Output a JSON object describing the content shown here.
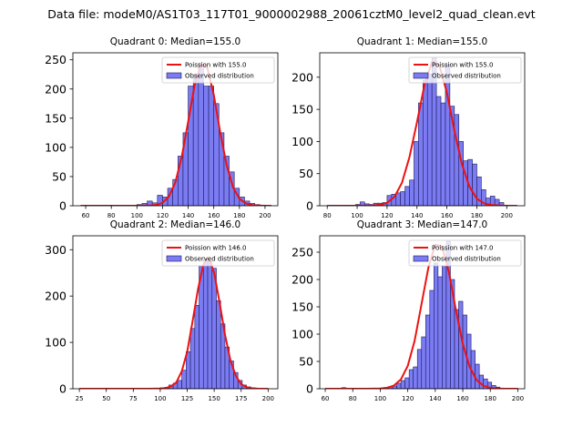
{
  "suptitle": "Data file: modeM0/AS1T03_117T01_9000002988_20061cztM0_level2_quad_clean.evt",
  "colors": {
    "bar_fill": "#7b7bf2",
    "bar_edge": "#1c1c5e",
    "line": "#ee1111"
  },
  "chart_data": [
    {
      "type": "bar",
      "title": "Quadrant 0: Median=155.0",
      "median": 155.0,
      "xlim": [
        50,
        210
      ],
      "ylim": [
        0,
        262
      ],
      "xticks": [
        60,
        80,
        100,
        120,
        140,
        160,
        180,
        200
      ],
      "yticks": [
        0,
        50,
        100,
        150,
        200,
        250
      ],
      "bin_width": 4,
      "bins": [
        100,
        104,
        108,
        112,
        116,
        120,
        124,
        128,
        132,
        136,
        140,
        144,
        148,
        152,
        156,
        160,
        164,
        168,
        172,
        176,
        180,
        184,
        188,
        192,
        196,
        200
      ],
      "values": [
        2,
        4,
        8,
        5,
        18,
        15,
        30,
        45,
        85,
        125,
        205,
        225,
        242,
        205,
        205,
        175,
        125,
        85,
        58,
        30,
        15,
        8,
        4,
        2,
        1,
        0
      ],
      "poisson_x": [
        56,
        60,
        70,
        80,
        90,
        100,
        110,
        115,
        120,
        125,
        130,
        135,
        140,
        145,
        150,
        155,
        160,
        165,
        170,
        175,
        180,
        185,
        190,
        195,
        200,
        205
      ],
      "poisson_y": [
        0,
        0,
        0,
        0,
        0,
        0,
        0.3,
        1.3,
        5,
        16,
        40,
        84,
        144,
        206,
        243,
        236,
        190,
        126,
        70,
        32,
        12,
        4,
        1,
        0.3,
        0,
        0
      ],
      "legend": {
        "line": "Poission with 155.0",
        "bar": "Observed distribution"
      }
    },
    {
      "type": "bar",
      "title": "Quadrant 1: Median=155.0",
      "median": 155.0,
      "xlim": [
        75,
        212
      ],
      "ylim": [
        0,
        238
      ],
      "xticks": [
        80,
        100,
        120,
        140,
        160,
        180,
        200
      ],
      "yticks": [
        0,
        50,
        100,
        150,
        200
      ],
      "bin_width": 3,
      "bins": [
        96,
        99,
        102,
        105,
        108,
        111,
        114,
        117,
        120,
        123,
        126,
        129,
        132,
        135,
        138,
        141,
        144,
        147,
        150,
        153,
        156,
        159,
        162,
        165,
        168,
        171,
        174,
        177,
        180,
        183,
        186,
        189,
        192,
        195,
        198
      ],
      "values": [
        1,
        2,
        6,
        3,
        2,
        4,
        4,
        5,
        16,
        18,
        20,
        22,
        30,
        40,
        100,
        160,
        195,
        205,
        230,
        170,
        160,
        220,
        155,
        142,
        100,
        70,
        72,
        65,
        45,
        25,
        12,
        15,
        10,
        5,
        1
      ],
      "poisson_x": [
        80,
        90,
        100,
        110,
        115,
        120,
        125,
        130,
        135,
        140,
        145,
        150,
        155,
        160,
        165,
        170,
        175,
        180,
        185,
        190,
        195,
        200,
        207
      ],
      "poisson_y": [
        0,
        0,
        0,
        0.3,
        1.2,
        4.6,
        14,
        36,
        76,
        130,
        188,
        224,
        218,
        176,
        117,
        65,
        30,
        11,
        3.5,
        1,
        0.3,
        0,
        0
      ],
      "legend": {
        "line": "Poission with 155.0",
        "bar": "Observed distribution"
      }
    },
    {
      "type": "bar",
      "title": "Quadrant 2: Median=146.0",
      "median": 146.0,
      "xlim": [
        19,
        209
      ],
      "ylim": [
        0,
        330
      ],
      "xticks": [
        25,
        50,
        75,
        100,
        125,
        150,
        175,
        200
      ],
      "yticks": [
        0,
        100,
        200,
        300
      ],
      "bin_width": 4,
      "bins": [
        96,
        100,
        104,
        108,
        112,
        116,
        120,
        124,
        128,
        132,
        136,
        140,
        144,
        148,
        152,
        156,
        160,
        164,
        168,
        172,
        176,
        180,
        184,
        188
      ],
      "values": [
        1,
        2,
        3,
        8,
        12,
        18,
        40,
        80,
        130,
        180,
        265,
        280,
        275,
        260,
        190,
        140,
        90,
        60,
        35,
        18,
        8,
        4,
        2,
        1
      ],
      "poisson_x": [
        25,
        50,
        75,
        90,
        100,
        105,
        110,
        115,
        120,
        125,
        130,
        135,
        140,
        145,
        150,
        155,
        160,
        165,
        170,
        175,
        180,
        185,
        190,
        195,
        200
      ],
      "poisson_y": [
        0,
        0,
        0,
        0,
        0.4,
        1.5,
        5,
        14,
        38,
        80,
        146,
        215,
        268,
        282,
        250,
        186,
        117,
        62,
        28,
        10,
        3.5,
        1,
        0.3,
        0,
        0
      ],
      "legend": {
        "line": "Poission with 146.0",
        "bar": "Observed distribution"
      }
    },
    {
      "type": "bar",
      "title": "Quadrant 3: Median=147.0",
      "median": 147.0,
      "xlim": [
        56,
        205
      ],
      "ylim": [
        0,
        280
      ],
      "xticks": [
        60,
        80,
        100,
        120,
        140,
        160,
        180,
        200
      ],
      "yticks": [
        0,
        50,
        100,
        150,
        200,
        250
      ],
      "bin_width": 3,
      "bins": [
        72,
        106,
        109,
        112,
        115,
        118,
        121,
        124,
        127,
        130,
        133,
        136,
        139,
        142,
        145,
        148,
        151,
        154,
        157,
        160,
        163,
        166,
        169,
        172,
        175,
        178,
        181,
        184,
        187
      ],
      "values": [
        2,
        4,
        5,
        10,
        15,
        20,
        35,
        40,
        72,
        95,
        135,
        180,
        230,
        205,
        225,
        270,
        200,
        145,
        160,
        135,
        100,
        70,
        45,
        25,
        18,
        12,
        6,
        3,
        1
      ],
      "poisson_x": [
        60,
        80,
        90,
        100,
        105,
        110,
        115,
        120,
        125,
        130,
        135,
        140,
        145,
        150,
        155,
        160,
        165,
        170,
        175,
        180,
        185,
        190,
        195,
        200
      ],
      "poisson_y": [
        0,
        0,
        0,
        0.5,
        1.8,
        6,
        17,
        42,
        88,
        155,
        222,
        264,
        260,
        212,
        144,
        82,
        40,
        16,
        5.5,
        1.6,
        0.4,
        0.1,
        0,
        0
      ],
      "legend": {
        "line": "Poission with 147.0",
        "bar": "Observed distribution"
      }
    }
  ]
}
